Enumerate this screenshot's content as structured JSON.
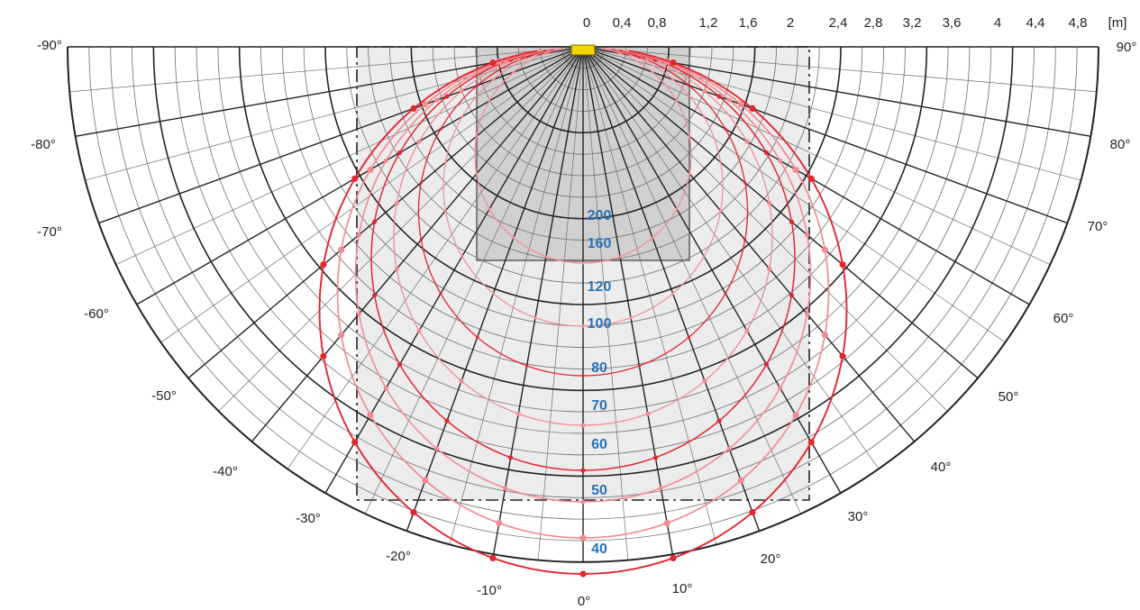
{
  "scale": {
    "unit_label": "[m]",
    "ticks": [
      "0",
      "0,4",
      "0,8",
      "1,2",
      "1,6",
      "2",
      "2,4",
      "2,8",
      "3,2",
      "3,6",
      "4",
      "4,4",
      "4,8"
    ]
  },
  "angles": {
    "left": [
      "-90°",
      "-80°",
      "-70°",
      "-60°",
      "-50°",
      "-40°",
      "-30°",
      "-20°",
      "-10°"
    ],
    "right": [
      "90°",
      "80°",
      "70°",
      "60°",
      "50°",
      "40°",
      "30°",
      "20°",
      "10°"
    ],
    "center": "0°"
  },
  "isolux_labels": [
    "200",
    "160",
    "120",
    "100",
    "80",
    "70",
    "60",
    "50",
    "40"
  ],
  "colors": {
    "grid": "#222222",
    "grid_fine": "#6f6f6f",
    "inner_zone": "#d0d0d0",
    "outer_zone": "#ececec",
    "curve_dark": "#e3262f",
    "curve_light": "#f08c92",
    "label_blue": "#2a72b5",
    "sensor": "#f2d400"
  },
  "icons": {
    "sensor": "sensor-icon"
  }
}
